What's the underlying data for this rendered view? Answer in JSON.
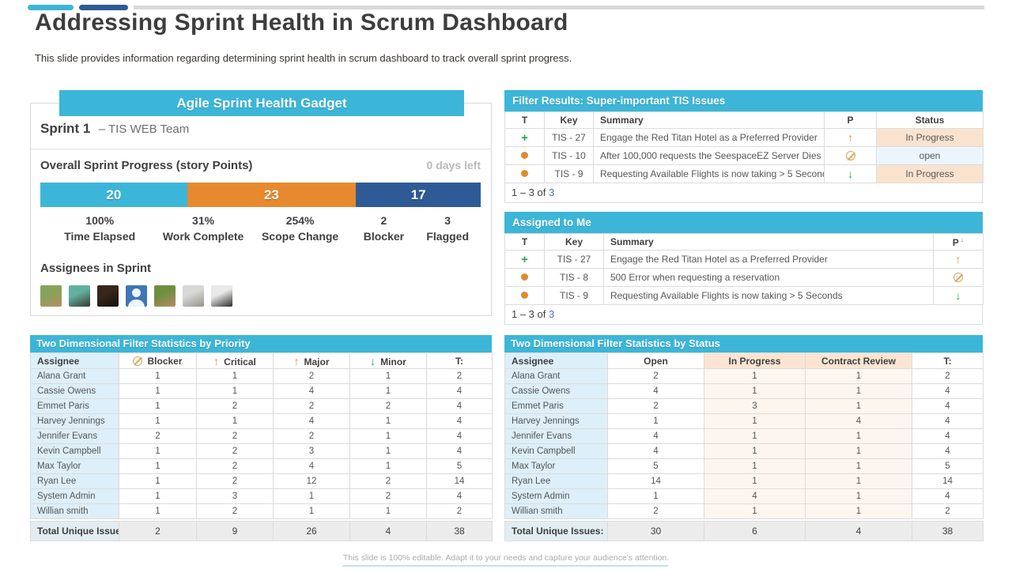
{
  "page": {
    "title": "Addressing Sprint Health in Scrum Dashboard",
    "subtitle": "This slide provides information regarding determining sprint health in scrum dashboard to track overall sprint progress.",
    "footer": "This slide is 100% editable. Adapt it to your needs and capture your audience's attention."
  },
  "colors": {
    "accent_cyan": "#3cb6d8",
    "accent_orange": "#e7892e",
    "accent_navy": "#2e5b95",
    "status_in_progress_bg": "#fae3ce",
    "status_open_bg": "#eaf6fb",
    "name_column_bg": "#ddeff8",
    "total_row_bg": "#ececec",
    "link_blue": "#4472c4"
  },
  "gadget": {
    "title": "Agile Sprint Health Gadget",
    "sprint_name": "Sprint 1",
    "sprint_team": "– TIS WEB Team",
    "progress_title": "Overall Sprint Progress (story Points)",
    "days_left": "0 days left",
    "progress_segments": [
      {
        "label": "20",
        "points": 20,
        "color": "#3cb6d8"
      },
      {
        "label": "23",
        "points": 23,
        "color": "#e7892e"
      },
      {
        "label": "17",
        "points": 17,
        "color": "#2e5b95"
      }
    ],
    "stats": [
      {
        "value": "100%",
        "label": "Time Elapsed"
      },
      {
        "value": "31%",
        "label": "Work Complete"
      },
      {
        "value": "254%",
        "label": "Scope Change"
      },
      {
        "value": "2",
        "label": "Blocker"
      },
      {
        "value": "3",
        "label": "Flagged"
      }
    ],
    "assignees_title": "Assignees in Sprint",
    "avatars": [
      {
        "type": "photo",
        "colors": [
          "#87a35a",
          "#b98d62"
        ]
      },
      {
        "type": "photo",
        "colors": [
          "#63b0a0",
          "#343b2f"
        ]
      },
      {
        "type": "photo",
        "colors": [
          "#38261b",
          "#16100c"
        ]
      },
      {
        "type": "generic",
        "colors": [
          "#3f76b5"
        ]
      },
      {
        "type": "photo",
        "colors": [
          "#6f8f3f",
          "#b58a64"
        ]
      },
      {
        "type": "photo",
        "colors": [
          "#d8d8d6",
          "#98918a"
        ]
      },
      {
        "type": "photo",
        "colors": [
          "#e9e9e9",
          "#2f2c2a"
        ]
      }
    ]
  },
  "filter_results": {
    "title": "Filter Results: Super-important TIS Issues",
    "columns": [
      "T",
      "Key",
      "Summary",
      "P",
      "Status"
    ],
    "rows": [
      {
        "type": "plus",
        "key": "TIS - 27",
        "summary": "Engage the Red Titan Hotel as a Preferred Provider",
        "p": "up",
        "status": "In Progress"
      },
      {
        "type": "dot",
        "key": "TIS - 10",
        "summary": "After 100,000 requests the SeespaceEZ Server Dies",
        "p": "block",
        "status": "open"
      },
      {
        "type": "dot",
        "key": "TIS - 9",
        "summary": "Requesting Available Flights is now taking > 5 Seconds",
        "p": "down",
        "status": "In Progress"
      }
    ],
    "pagination_range": "1 – 3 of",
    "pagination_total": "3"
  },
  "assigned_to_me": {
    "title": "Assigned to Me",
    "columns": [
      "T",
      "Key",
      "Summary",
      "P"
    ],
    "rows": [
      {
        "type": "plus",
        "key": "TIS - 27",
        "summary": "Engage the Red Titan Hotel as a Preferred Provider",
        "p": "up"
      },
      {
        "type": "dot",
        "key": "TIS - 8",
        "summary": "500 Error when requesting a reservation",
        "p": "block"
      },
      {
        "type": "dot",
        "key": "TIS - 9",
        "summary": "Requesting Available Flights is now taking > 5 Seconds",
        "p": "down"
      }
    ],
    "pagination_range": "1 – 3 of",
    "pagination_total": "3"
  },
  "priority_table": {
    "title": "Two Dimensional Filter Statistics by Priority",
    "columns": [
      {
        "label": "Assignee"
      },
      {
        "icon": "block",
        "label": "Blocker"
      },
      {
        "icon": "up",
        "label": "Critical"
      },
      {
        "icon": "up",
        "label": "Major"
      },
      {
        "icon": "down",
        "label": "Minor"
      },
      {
        "label": "T:"
      }
    ],
    "tint_cols": [],
    "rows": [
      [
        "Alana Grant",
        1,
        1,
        2,
        1,
        2
      ],
      [
        "Cassie Owens",
        1,
        1,
        4,
        1,
        4
      ],
      [
        "Emmet Paris",
        1,
        2,
        2,
        2,
        4
      ],
      [
        "Harvey Jennings",
        1,
        1,
        4,
        1,
        4
      ],
      [
        "Jennifer Evans",
        2,
        2,
        2,
        1,
        4
      ],
      [
        "Kevin Campbell",
        1,
        2,
        3,
        1,
        4
      ],
      [
        "Max Taylor",
        1,
        2,
        4,
        1,
        5
      ],
      [
        "Ryan Lee",
        1,
        2,
        12,
        2,
        14
      ],
      [
        "System Admin",
        1,
        3,
        1,
        2,
        4
      ],
      [
        "Willian smith",
        1,
        2,
        1,
        1,
        2
      ]
    ],
    "total_label": "Total Unique Issues:",
    "totals": [
      2,
      9,
      26,
      4,
      38
    ]
  },
  "status_table": {
    "title": "Two Dimensional Filter Statistics by Status",
    "columns": [
      {
        "label": "Assignee"
      },
      {
        "label": "Open"
      },
      {
        "label": "In Progress",
        "highlight": true
      },
      {
        "label": "Contract Review",
        "highlight": true
      },
      {
        "label": "T:"
      }
    ],
    "tint_cols": [
      2,
      3
    ],
    "rows": [
      [
        "Alana Grant",
        2,
        1,
        1,
        2
      ],
      [
        "Cassie Owens",
        4,
        1,
        1,
        4
      ],
      [
        "Emmet Paris",
        2,
        3,
        1,
        4
      ],
      [
        "Harvey Jennings",
        1,
        1,
        4,
        4
      ],
      [
        "Jennifer Evans",
        4,
        1,
        1,
        4
      ],
      [
        "Kevin Campbell",
        4,
        1,
        1,
        4
      ],
      [
        "Max Taylor",
        5,
        1,
        1,
        5
      ],
      [
        "Ryan Lee",
        14,
        1,
        1,
        14
      ],
      [
        "System Admin",
        1,
        4,
        1,
        4
      ],
      [
        "Willian smith",
        2,
        1,
        1,
        2
      ]
    ],
    "total_label": "Total Unique Issues:",
    "totals": [
      30,
      6,
      4,
      38
    ]
  }
}
